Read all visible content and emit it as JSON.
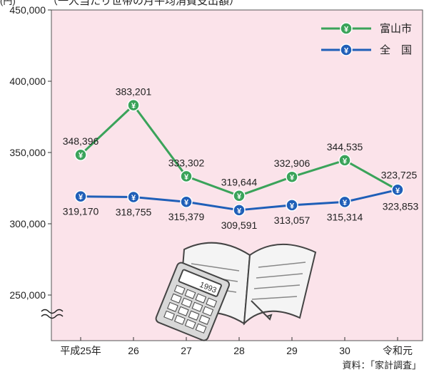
{
  "header": {
    "unit": "(円)",
    "title_fragment": "（一人当たり世帯の月平均消費支出額）"
  },
  "chart_data": {
    "type": "line",
    "categories": [
      "平成25年",
      "26",
      "27",
      "28",
      "29",
      "30",
      "令和元"
    ],
    "series": [
      {
        "name": "富山市",
        "color": "#3aa35a",
        "values": [
          348396,
          383201,
          333302,
          319644,
          332906,
          344535,
          323725
        ],
        "labels": [
          "348,396",
          "383,201",
          "333,302",
          "319,644",
          "332,906",
          "344,535",
          "323,725"
        ]
      },
      {
        "name": "全　国",
        "color": "#1f5fb8",
        "values": [
          319170,
          318755,
          315379,
          309591,
          313057,
          315314,
          323853
        ],
        "labels": [
          "319,170",
          "318,755",
          "315,379",
          "309,591",
          "313,057",
          "315,314",
          "323,853"
        ]
      }
    ],
    "y_ticks": [
      "450,000",
      "400,000",
      "350,000",
      "300,000",
      "250,000"
    ],
    "y_tick_values": [
      450000,
      400000,
      350000,
      300000,
      250000
    ],
    "ylim": [
      250000,
      450000
    ],
    "axis_break": true,
    "grid": false,
    "legend_position": "top-right",
    "background_color": "#fbe3ea",
    "marker_symbol": "¥"
  },
  "illustration": {
    "name": "book and calculator",
    "calculator_display": "1993"
  },
  "source": "資料：「家計調査」"
}
